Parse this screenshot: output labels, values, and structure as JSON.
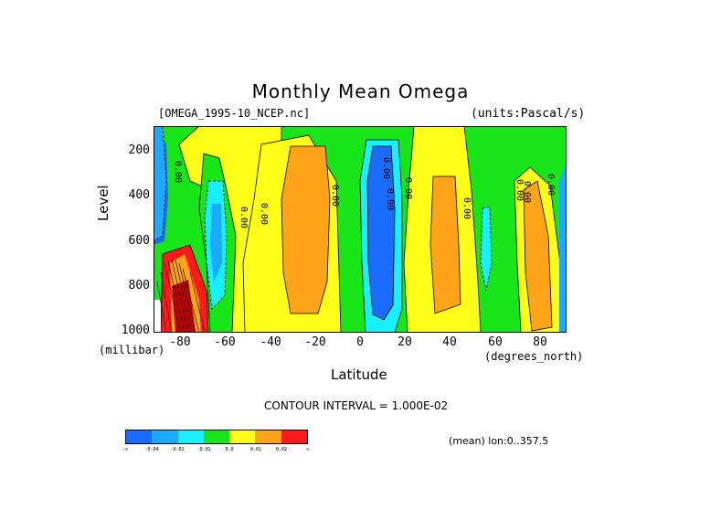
{
  "title": "Monthly Mean Omega",
  "dataset": "[OMEGA_1995-10_NCEP.nc]",
  "units": "(units:Pascal/s)",
  "chart_data": {
    "type": "heatmap",
    "title": "Monthly Mean Omega",
    "xlabel": "Latitude",
    "ylabel": "Level",
    "x_unit": "(degrees_north)",
    "y_unit": "(millibar)",
    "xlim": [
      -90,
      90
    ],
    "ylim": [
      1000,
      100
    ],
    "x_ticks": [
      "-80",
      "-60",
      "-40",
      "-20",
      "0",
      "20",
      "40",
      "60",
      "80"
    ],
    "y_ticks": [
      "200",
      "400",
      "600",
      "800",
      "1000"
    ],
    "contour_labels": [
      "0.00",
      "0.00",
      "0.00",
      "0.00",
      "0.00",
      "0.00",
      "0.00",
      "0.00",
      "0.00",
      "0.00",
      "0.00"
    ],
    "contour_interval": "CONTOUR INTERVAL = 1.000E-02",
    "note": "(mean) lon:0..357.5",
    "colorbar": {
      "labels": [
        "-∞",
        "-0.04",
        "-0.02",
        "-0.01",
        "0.0",
        "0.01",
        "0.02",
        "∞"
      ],
      "colors": [
        "#1a6cff",
        "#1aaaff",
        "#19f0ff",
        "#19e619",
        "#ffff19",
        "#ffa319",
        "#ff1a1a"
      ]
    }
  }
}
